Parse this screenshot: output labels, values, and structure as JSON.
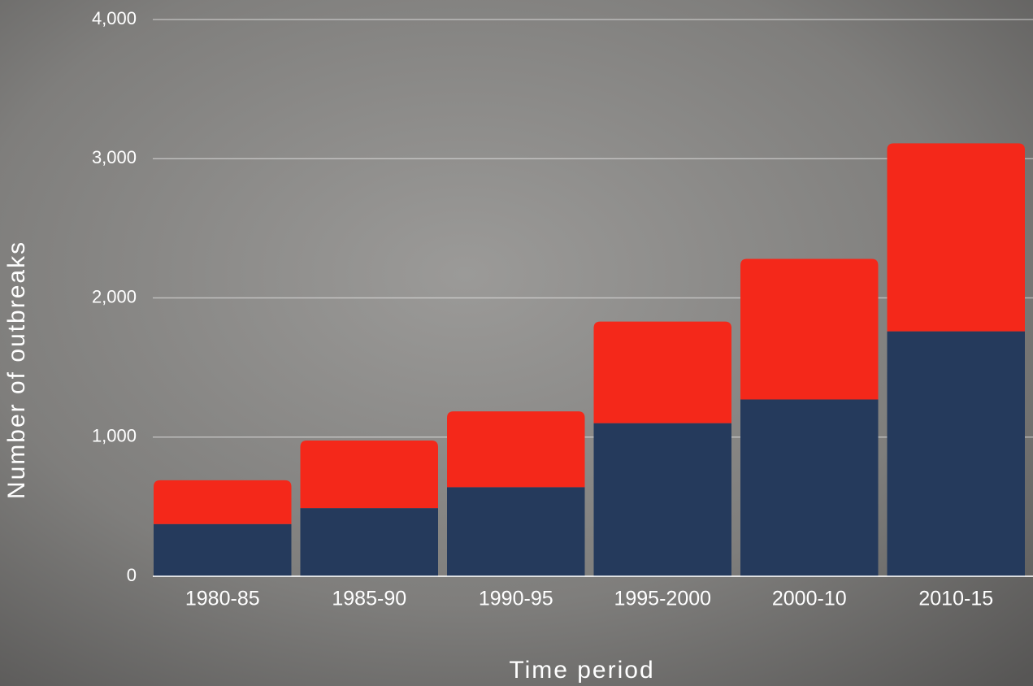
{
  "chart_data": {
    "type": "stacked_bar",
    "x_label": "Time period",
    "y_label": "Number of outbreaks",
    "categories": [
      "1980-85",
      "1985-90",
      "1990-95",
      "1995-2000",
      "2000-10",
      "2010-15"
    ],
    "series": [
      {
        "color": "#253a5c",
        "values": [
          375,
          490,
          640,
          1100,
          1270,
          1760
        ]
      },
      {
        "color": "#f4281a",
        "values": [
          315,
          485,
          545,
          730,
          1010,
          1350
        ]
      }
    ],
    "ylim": [
      0,
      4000
    ],
    "yticks": [
      0,
      {
        "value": 1000,
        "label": "1,000"
      },
      {
        "value": 2000,
        "label": "2,000"
      },
      {
        "value": 3000,
        "label": "3,000"
      },
      {
        "value": 4000,
        "label": "4,000"
      }
    ],
    "grid": true
  }
}
